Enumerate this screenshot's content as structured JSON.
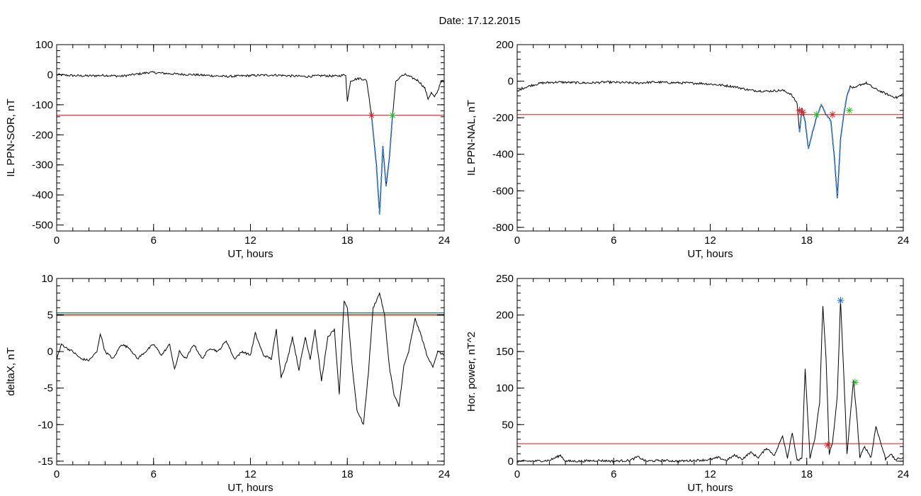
{
  "figure_title": "Date:  17.12.2015",
  "colors": {
    "axis": "#000000",
    "trace": "#000000",
    "threshold_red": "#ee1111",
    "threshold_blue": "#2255cc",
    "threshold_green": "#22aa22",
    "highlight": "#3a86d8",
    "marker_red": "#dd2222",
    "marker_green": "#22bb22",
    "marker_blue": "#2266dd"
  },
  "chart_data": [
    {
      "type": "line",
      "xlabel": "UT, hours",
      "ylabel": "IL PPN-SOR, nT",
      "xlim": [
        0,
        24
      ],
      "ylim": [
        -520,
        100
      ],
      "xticks": [
        0,
        6,
        12,
        18,
        24
      ],
      "yticks": [
        -500,
        -400,
        -300,
        -200,
        -100,
        0,
        100
      ],
      "thresholds": [
        {
          "y": -135,
          "color": "#ee1111"
        }
      ],
      "series": [
        {
          "x": [
            0,
            1,
            2,
            3,
            4,
            5,
            5.8,
            6.5,
            7.5,
            8.5,
            9.5,
            10.5,
            11.5,
            12.5,
            13.5,
            14.5,
            15.5,
            16.5,
            17.3,
            17.7,
            17.9,
            18.0,
            18.2,
            18.5,
            18.8,
            19.2,
            19.5,
            19.8,
            20.0,
            20.2,
            20.4,
            20.6,
            20.8,
            21.0,
            21.3,
            21.6,
            22.0,
            22.4,
            22.8,
            23.0,
            23.2,
            23.4,
            23.6,
            23.8,
            24
          ],
          "y": [
            0,
            -3,
            -4,
            -2,
            -5,
            2,
            8,
            5,
            2,
            0,
            -3,
            -6,
            -4,
            -2,
            -1,
            -4,
            -6,
            -3,
            -5,
            -2,
            0,
            -90,
            -20,
            -15,
            -12,
            -20,
            -135,
            -300,
            -465,
            -240,
            -370,
            -280,
            -135,
            -25,
            -5,
            0,
            -10,
            -20,
            -45,
            -80,
            -60,
            -75,
            -55,
            -20,
            -25
          ]
        }
      ],
      "highlight": {
        "x0": 19.5,
        "x1": 20.8
      },
      "markers": [
        {
          "x": 19.5,
          "y": -135,
          "color": "#dd2222"
        },
        {
          "x": 20.8,
          "y": -135,
          "color": "#22bb22"
        }
      ]
    },
    {
      "type": "line",
      "xlabel": "UT, hours",
      "ylabel": "IL PPN-NAL, nT",
      "xlim": [
        0,
        24
      ],
      "ylim": [
        -820,
        200
      ],
      "xticks": [
        0,
        6,
        12,
        18,
        24
      ],
      "yticks": [
        -800,
        -600,
        -400,
        -200,
        0,
        200
      ],
      "thresholds": [
        {
          "y": -183,
          "color": "#ee1111"
        }
      ],
      "series": [
        {
          "x": [
            0,
            0.3,
            0.8,
            1.5,
            2.5,
            3.5,
            4.5,
            5.5,
            6.5,
            7.5,
            8.5,
            9.5,
            10.5,
            11.5,
            12.5,
            13.5,
            14.5,
            15.5,
            16.5,
            17.0,
            17.4,
            17.55,
            17.7,
            17.9,
            18.1,
            18.3,
            18.6,
            18.9,
            19.2,
            19.5,
            19.7,
            19.9,
            20.1,
            20.3,
            20.5,
            20.7,
            21.0,
            21.3,
            21.7,
            22.2,
            22.7,
            23.2,
            23.6,
            24
          ],
          "y": [
            -60,
            -40,
            -25,
            -10,
            -5,
            -8,
            -10,
            -5,
            -8,
            -10,
            -5,
            -8,
            -10,
            -12,
            -20,
            -30,
            -50,
            -55,
            -50,
            -70,
            -120,
            -280,
            -150,
            -220,
            -370,
            -300,
            -200,
            -130,
            -180,
            -220,
            -400,
            -640,
            -320,
            -180,
            -80,
            -30,
            -40,
            -20,
            -10,
            -40,
            -60,
            -80,
            -90,
            -70
          ]
        }
      ],
      "highlight": {
        "x0": 17.5,
        "x1": 20.7
      },
      "markers": [
        {
          "x": 17.55,
          "y": -160,
          "color": "#dd2222"
        },
        {
          "x": 17.75,
          "y": -170,
          "color": "#dd2222"
        },
        {
          "x": 18.6,
          "y": -183,
          "color": "#22bb22"
        },
        {
          "x": 19.6,
          "y": -183,
          "color": "#dd2222"
        },
        {
          "x": 20.65,
          "y": -160,
          "color": "#22bb22"
        }
      ]
    },
    {
      "type": "line",
      "xlabel": "UT, hours",
      "ylabel": "deltaX, nT",
      "xlim": [
        0,
        24
      ],
      "ylim": [
        -15.5,
        10
      ],
      "xticks": [
        0,
        6,
        12,
        18,
        24
      ],
      "yticks": [
        -15,
        -10,
        -5,
        0,
        5,
        10
      ],
      "thresholds": [
        {
          "y": 5.3,
          "color": "#2255cc"
        },
        {
          "y": 5.1,
          "color": "#22aa22"
        },
        {
          "y": 4.95,
          "color": "#ee1111"
        }
      ],
      "series": [
        {
          "x": [
            0,
            0.3,
            0.6,
            1.0,
            1.5,
            2.0,
            2.5,
            2.7,
            3.0,
            3.5,
            4.0,
            4.5,
            5.0,
            5.5,
            6.0,
            6.5,
            7.0,
            7.3,
            7.6,
            8.0,
            8.5,
            9.0,
            9.5,
            10.0,
            10.5,
            11.0,
            11.5,
            12.0,
            12.3,
            12.8,
            13.3,
            13.6,
            13.9,
            14.3,
            14.6,
            15.0,
            15.4,
            15.7,
            16.0,
            16.4,
            16.8,
            17.2,
            17.5,
            17.8,
            18.0,
            18.3,
            18.6,
            19.0,
            19.3,
            19.6,
            20.0,
            20.3,
            20.6,
            20.9,
            21.2,
            21.5,
            21.8,
            22.2,
            22.6,
            23.0,
            23.3,
            23.6,
            24
          ],
          "y": [
            -1,
            1,
            0.5,
            0,
            -1,
            -1.2,
            0,
            2.5,
            0,
            -1,
            1,
            0.5,
            -1,
            0,
            1,
            -0.5,
            1,
            -2.5,
            0,
            -1,
            1,
            -1,
            0.5,
            0,
            1.5,
            -1,
            0,
            -0.5,
            2.5,
            -0.5,
            -1,
            3,
            -3.5,
            -1,
            2,
            -2.5,
            2,
            -1,
            3,
            -4,
            2,
            3,
            -6,
            7,
            6,
            -2,
            -8,
            -10,
            -3,
            6,
            8,
            5,
            -2,
            -6,
            -7.5,
            -2,
            0,
            4.5,
            2,
            -1,
            -2,
            0,
            -0.5
          ]
        }
      ],
      "highlight": null,
      "markers": []
    },
    {
      "type": "line",
      "xlabel": "UT, hours",
      "ylabel": "Hor. power, nT^2",
      "xlim": [
        0,
        24
      ],
      "ylim": [
        -5,
        250
      ],
      "xticks": [
        0,
        6,
        12,
        18,
        24
      ],
      "yticks": [
        0,
        50,
        100,
        150,
        200,
        250
      ],
      "thresholds": [
        {
          "y": 24,
          "color": "#ee1111"
        }
      ],
      "series": [
        {
          "x": [
            0,
            1,
            2,
            2.7,
            3,
            4,
            5,
            6,
            7,
            7.5,
            8,
            9,
            10,
            11,
            12,
            12.5,
            13,
            13.5,
            14,
            14.5,
            15,
            15.5,
            16,
            16.5,
            16.8,
            17.1,
            17.4,
            17.7,
            17.9,
            18.2,
            18.5,
            18.8,
            19.0,
            19.2,
            19.4,
            19.6,
            19.9,
            20.1,
            20.3,
            20.5,
            20.7,
            20.9,
            21.1,
            21.3,
            21.6,
            22.0,
            22.3,
            22.6,
            22.9,
            23.2,
            23.5,
            24
          ],
          "y": [
            0,
            0,
            1,
            8,
            0,
            0,
            1,
            0,
            1,
            6,
            0,
            1,
            0,
            1,
            2,
            5,
            1,
            8,
            3,
            12,
            5,
            18,
            8,
            35,
            5,
            40,
            0,
            5,
            125,
            5,
            30,
            80,
            213,
            140,
            10,
            25,
            90,
            220,
            120,
            10,
            60,
            110,
            65,
            5,
            20,
            5,
            48,
            25,
            3,
            10,
            2,
            5
          ]
        }
      ],
      "highlight": null,
      "markers": [
        {
          "x": 19.3,
          "y": 22,
          "color": "#dd2222"
        },
        {
          "x": 20.1,
          "y": 220,
          "color": "#2266dd"
        },
        {
          "x": 21.0,
          "y": 108,
          "color": "#22bb22"
        }
      ]
    }
  ]
}
